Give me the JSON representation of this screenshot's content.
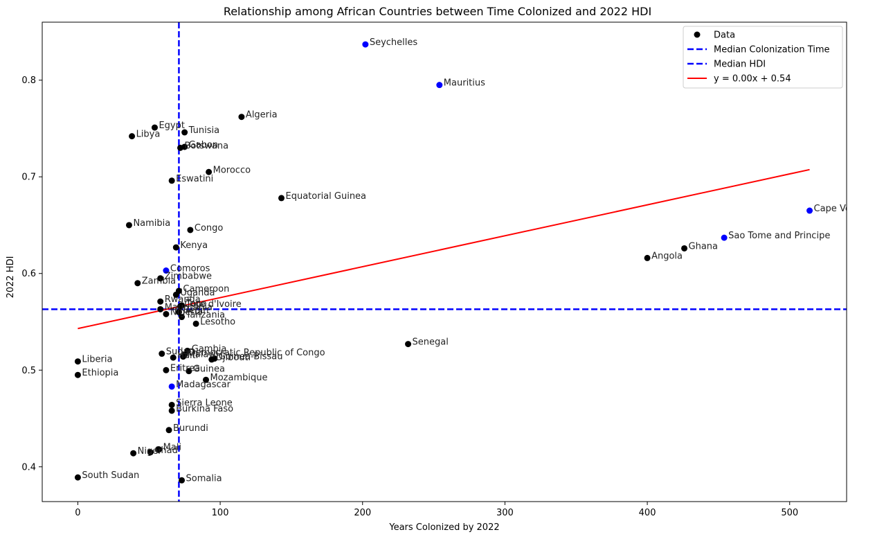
{
  "chart_data": {
    "type": "scatter",
    "title": "Relationship among African Countries between Time Colonized and 2022 HDI",
    "xlabel": "Years Colonized by 2022",
    "ylabel": "2022 HDI",
    "xlim": [
      -25,
      540
    ],
    "ylim": [
      0.364,
      0.86
    ],
    "xticks": [
      0,
      100,
      200,
      300,
      400,
      500
    ],
    "yticks": [
      0.4,
      0.5,
      0.6,
      0.7,
      0.8
    ],
    "grid": false,
    "legend_position": "top-right",
    "colors": {
      "data": "#000000",
      "highlight": "#0000ff",
      "median": "#0000ff",
      "fit": "#ff0000"
    },
    "median_x": 71,
    "median_y": 0.563,
    "fit": {
      "slope": 0.00032,
      "intercept": 0.543,
      "x_range": [
        0,
        514
      ]
    },
    "legend": [
      {
        "label": "Data",
        "kind": "marker",
        "color": "#000000"
      },
      {
        "label": "Median Colonization Time",
        "kind": "dashed",
        "color": "#0000ff"
      },
      {
        "label": "Median HDI",
        "kind": "dashed",
        "color": "#0000ff"
      },
      {
        "label": "y = 0.00x + 0.54",
        "kind": "line",
        "color": "#ff0000"
      }
    ],
    "points": [
      {
        "label": "Seychelles",
        "x": 202,
        "y": 0.837,
        "color": "#0000ff"
      },
      {
        "label": "Mauritius",
        "x": 254,
        "y": 0.795,
        "color": "#0000ff"
      },
      {
        "label": "Algeria",
        "x": 115,
        "y": 0.762,
        "color": "#000000"
      },
      {
        "label": "Egypt",
        "x": 54,
        "y": 0.751,
        "color": "#000000"
      },
      {
        "label": "Tunisia",
        "x": 75,
        "y": 0.746,
        "color": "#000000"
      },
      {
        "label": "Libya",
        "x": 38,
        "y": 0.742,
        "color": "#000000"
      },
      {
        "label": "Botswana",
        "x": 72,
        "y": 0.73,
        "color": "#000000"
      },
      {
        "label": "Gabon",
        "x": 75,
        "y": 0.731,
        "color": "#000000"
      },
      {
        "label": "Morocco",
        "x": 92,
        "y": 0.705,
        "color": "#000000"
      },
      {
        "label": "Eswatini",
        "x": 66,
        "y": 0.696,
        "color": "#000000"
      },
      {
        "label": "Equatorial Guinea",
        "x": 143,
        "y": 0.678,
        "color": "#000000"
      },
      {
        "label": "Cape Verde",
        "x": 514,
        "y": 0.665,
        "color": "#0000ff"
      },
      {
        "label": "Namibia",
        "x": 36,
        "y": 0.65,
        "color": "#000000"
      },
      {
        "label": "Congo",
        "x": 79,
        "y": 0.645,
        "color": "#000000"
      },
      {
        "label": "Sao Tome and Principe",
        "x": 454,
        "y": 0.637,
        "color": "#0000ff"
      },
      {
        "label": "Kenya",
        "x": 69,
        "y": 0.627,
        "color": "#000000"
      },
      {
        "label": "Ghana",
        "x": 426,
        "y": 0.626,
        "color": "#000000"
      },
      {
        "label": "Angola",
        "x": 400,
        "y": 0.616,
        "color": "#000000"
      },
      {
        "label": "Comoros",
        "x": 62,
        "y": 0.603,
        "color": "#0000ff"
      },
      {
        "label": "Zimbabwe",
        "x": 58,
        "y": 0.595,
        "color": "#000000"
      },
      {
        "label": "Zambia",
        "x": 42,
        "y": 0.59,
        "color": "#000000"
      },
      {
        "label": "Cameroon",
        "x": 71,
        "y": 0.582,
        "color": "#000000"
      },
      {
        "label": "Uganda",
        "x": 69,
        "y": 0.578,
        "color": "#000000"
      },
      {
        "label": "Rwanda",
        "x": 58,
        "y": 0.571,
        "color": "#000000"
      },
      {
        "label": "Togo",
        "x": 73,
        "y": 0.567,
        "color": "#000000"
      },
      {
        "label": "Cote d'Ivoire",
        "x": 72,
        "y": 0.566,
        "color": "#000000"
      },
      {
        "label": "Mauritania",
        "x": 58,
        "y": 0.563,
        "color": "#000000"
      },
      {
        "label": "Benin",
        "x": 71,
        "y": 0.56,
        "color": "#000000"
      },
      {
        "label": "Nigeria",
        "x": 62,
        "y": 0.558,
        "color": "#000000"
      },
      {
        "label": "Tanzania",
        "x": 73,
        "y": 0.555,
        "color": "#000000"
      },
      {
        "label": "Lesotho",
        "x": 83,
        "y": 0.548,
        "color": "#000000"
      },
      {
        "label": "Senegal",
        "x": 232,
        "y": 0.527,
        "color": "#000000"
      },
      {
        "label": "Gambia",
        "x": 77,
        "y": 0.52,
        "color": "#000000"
      },
      {
        "label": "Sudan",
        "x": 59,
        "y": 0.517,
        "color": "#000000"
      },
      {
        "label": "Democratic Republic of Congo",
        "x": 75,
        "y": 0.516,
        "color": "#000000"
      },
      {
        "label": "Malawi",
        "x": 74,
        "y": 0.514,
        "color": "#000000"
      },
      {
        "label": "Haiti",
        "x": 67,
        "y": 0.513,
        "color": "#000000"
      },
      {
        "label": "Guinea-Bissau",
        "x": 96,
        "y": 0.512,
        "color": "#000000"
      },
      {
        "label": "Djibouti",
        "x": 94,
        "y": 0.511,
        "color": "#000000"
      },
      {
        "label": "Liberia",
        "x": 0,
        "y": 0.509,
        "color": "#000000"
      },
      {
        "label": "Eritrea",
        "x": 62,
        "y": 0.5,
        "color": "#000000"
      },
      {
        "label": "Guinea",
        "x": 78,
        "y": 0.499,
        "color": "#000000"
      },
      {
        "label": "Ethiopia",
        "x": 0,
        "y": 0.495,
        "color": "#000000"
      },
      {
        "label": "Mozambique",
        "x": 90,
        "y": 0.49,
        "color": "#000000"
      },
      {
        "label": "Madagascar",
        "x": 66,
        "y": 0.483,
        "color": "#0000ff"
      },
      {
        "label": "Sierra Leone",
        "x": 66,
        "y": 0.464,
        "color": "#000000"
      },
      {
        "label": "Burkina Faso",
        "x": 66,
        "y": 0.458,
        "color": "#000000"
      },
      {
        "label": "Burundi",
        "x": 64,
        "y": 0.438,
        "color": "#000000"
      },
      {
        "label": "Mali",
        "x": 57,
        "y": 0.418,
        "color": "#000000"
      },
      {
        "label": "Chad",
        "x": 51,
        "y": 0.415,
        "color": "#000000"
      },
      {
        "label": "Niger",
        "x": 39,
        "y": 0.414,
        "color": "#000000"
      },
      {
        "label": "South Sudan",
        "x": 0,
        "y": 0.389,
        "color": "#000000"
      },
      {
        "label": "Somalia",
        "x": 73,
        "y": 0.386,
        "color": "#000000"
      }
    ]
  }
}
